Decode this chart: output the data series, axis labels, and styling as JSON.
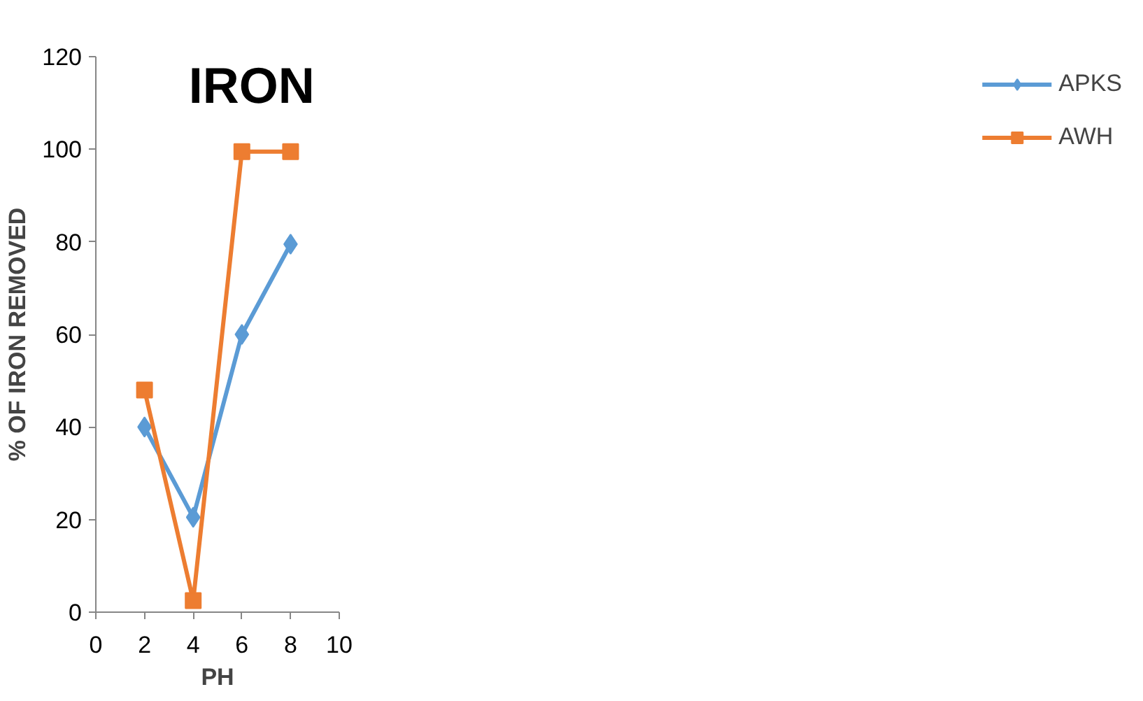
{
  "chart_data": {
    "type": "line",
    "title": "IRON",
    "xlabel": "PH",
    "ylabel": "% OF IRON REMOVED",
    "x": [
      2,
      4,
      6,
      8
    ],
    "series": [
      {
        "name": "APKS",
        "color": "#5b9bd5",
        "values": [
          40,
          20.5,
          60,
          79.5
        ],
        "marker": "diamond"
      },
      {
        "name": "AWH",
        "color": "#ed7d31",
        "values": [
          48,
          2.5,
          99.5,
          99.5
        ],
        "marker": "square"
      }
    ],
    "xlim": [
      0,
      10
    ],
    "xticks": [
      0,
      2,
      4,
      6,
      8,
      10
    ],
    "ylim": [
      0,
      120
    ],
    "yticks": [
      0,
      20,
      40,
      60,
      80,
      100,
      120
    ],
    "grid": false,
    "legend": "right",
    "line_style": "solid"
  }
}
